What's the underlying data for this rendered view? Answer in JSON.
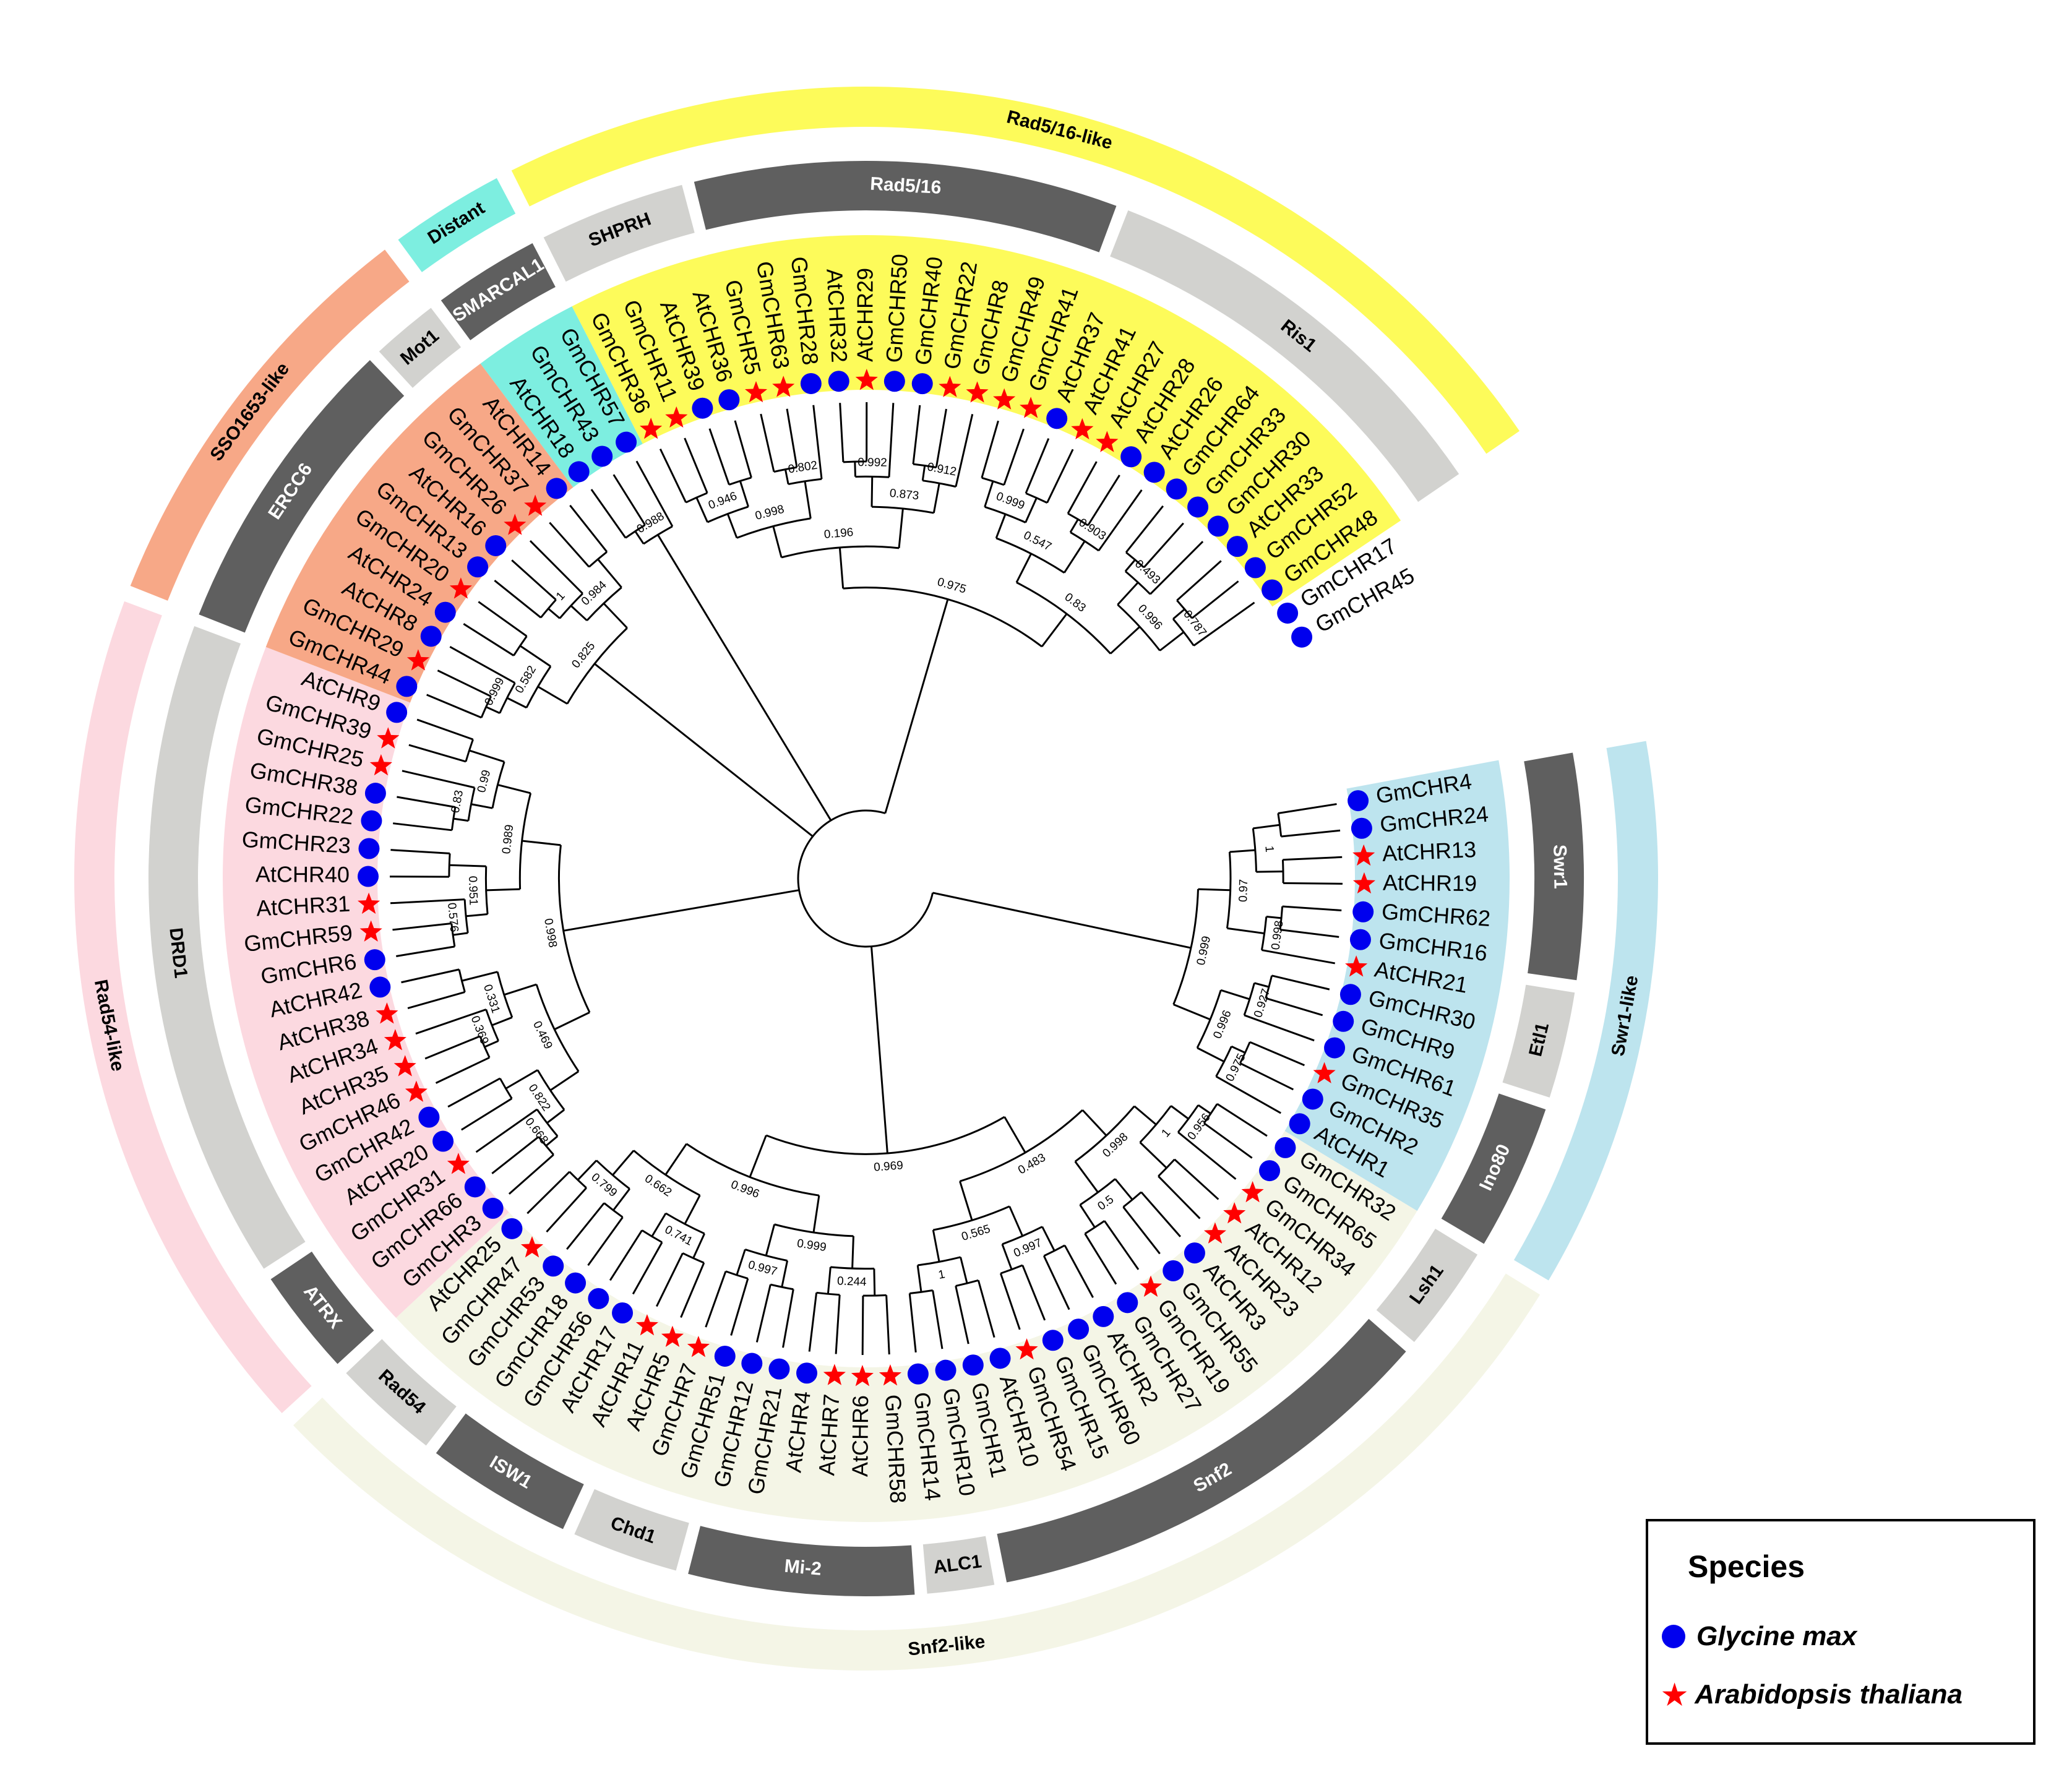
{
  "leaves": [
    {
      "id": "GmCHR4",
      "sp": "gm"
    },
    {
      "id": "GmCHR24",
      "sp": "gm"
    },
    {
      "id": "AtCHR13",
      "sp": "at"
    },
    {
      "id": "AtCHR19",
      "sp": "at"
    },
    {
      "id": "GmCHR62",
      "sp": "gm"
    },
    {
      "id": "GmCHR16",
      "sp": "gm"
    },
    {
      "id": "AtCHR21",
      "sp": "at"
    },
    {
      "id": "GmCHR30",
      "sp": "gm"
    },
    {
      "id": "GmCHR9",
      "sp": "gm"
    },
    {
      "id": "GmCHR61",
      "sp": "gm"
    },
    {
      "id": "GmCHR35",
      "sp": "at"
    },
    {
      "id": "GmCHR2",
      "sp": "gm"
    },
    {
      "id": "AtCHR1",
      "sp": "gm"
    },
    {
      "id": "GmCHR32",
      "sp": "gm"
    },
    {
      "id": "GmCHR65",
      "sp": "gm"
    },
    {
      "id": "GmCHR34",
      "sp": "at"
    },
    {
      "id": "AtCHR12",
      "sp": "at"
    },
    {
      "id": "AtCHR23",
      "sp": "at"
    },
    {
      "id": "AtCHR3",
      "sp": "gm"
    },
    {
      "id": "GmCHR55",
      "sp": "gm"
    },
    {
      "id": "GmCHR19",
      "sp": "at"
    },
    {
      "id": "GmCHR27",
      "sp": "gm"
    },
    {
      "id": "AtCHR2",
      "sp": "gm"
    },
    {
      "id": "GmCHR60",
      "sp": "gm"
    },
    {
      "id": "GmCHR15",
      "sp": "gm"
    },
    {
      "id": "GmCHR54",
      "sp": "at"
    },
    {
      "id": "AtCHR10",
      "sp": "gm"
    },
    {
      "id": "GmCHR1",
      "sp": "gm"
    },
    {
      "id": "GmCHR10",
      "sp": "gm"
    },
    {
      "id": "GmCHR14",
      "sp": "gm"
    },
    {
      "id": "GmCHR58",
      "sp": "at"
    },
    {
      "id": "AtCHR6",
      "sp": "at"
    },
    {
      "id": "AtCHR7",
      "sp": "at"
    },
    {
      "id": "AtCHR4",
      "sp": "gm"
    },
    {
      "id": "GmCHR21",
      "sp": "gm"
    },
    {
      "id": "GmCHR12",
      "sp": "gm"
    },
    {
      "id": "GmCHR51",
      "sp": "gm"
    },
    {
      "id": "GmCHR7",
      "sp": "at"
    },
    {
      "id": "AtCHR5",
      "sp": "at"
    },
    {
      "id": "AtCHR11",
      "sp": "at"
    },
    {
      "id": "AtCHR17",
      "sp": "gm"
    },
    {
      "id": "GmCHR56",
      "sp": "gm"
    },
    {
      "id": "GmCHR18",
      "sp": "gm"
    },
    {
      "id": "GmCHR53",
      "sp": "gm"
    },
    {
      "id": "GmCHR47",
      "sp": "at"
    },
    {
      "id": "AtCHR25",
      "sp": "gm"
    },
    {
      "id": "GmCHR3",
      "sp": "gm"
    },
    {
      "id": "GmCHR66",
      "sp": "gm"
    },
    {
      "id": "GmCHR31",
      "sp": "at"
    },
    {
      "id": "AtCHR20",
      "sp": "gm"
    },
    {
      "id": "GmCHR42",
      "sp": "gm"
    },
    {
      "id": "GmCHR46",
      "sp": "at"
    },
    {
      "id": "AtCHR35",
      "sp": "at"
    },
    {
      "id": "AtCHR34",
      "sp": "at"
    },
    {
      "id": "AtCHR38",
      "sp": "at"
    },
    {
      "id": "AtCHR42",
      "sp": "gm"
    },
    {
      "id": "GmCHR6",
      "sp": "gm"
    },
    {
      "id": "GmCHR59",
      "sp": "at"
    },
    {
      "id": "AtCHR31",
      "sp": "at"
    },
    {
      "id": "AtCHR40",
      "sp": "gm"
    },
    {
      "id": "GmCHR23",
      "sp": "gm"
    },
    {
      "id": "GmCHR22",
      "sp": "gm"
    },
    {
      "id": "GmCHR38",
      "sp": "gm"
    },
    {
      "id": "GmCHR25",
      "sp": "at"
    },
    {
      "id": "GmCHR39",
      "sp": "at"
    },
    {
      "id": "AtCHR9",
      "sp": "gm"
    },
    {
      "id": "GmCHR44",
      "sp": "gm"
    },
    {
      "id": "GmCHR29",
      "sp": "at"
    },
    {
      "id": "AtCHR8",
      "sp": "gm"
    },
    {
      "id": "AtCHR24",
      "sp": "gm"
    },
    {
      "id": "GmCHR20",
      "sp": "at"
    },
    {
      "id": "GmCHR13",
      "sp": "gm"
    },
    {
      "id": "AtCHR16",
      "sp": "gm"
    },
    {
      "id": "GmCHR26",
      "sp": "at"
    },
    {
      "id": "GmCHR37",
      "sp": "at"
    },
    {
      "id": "AtCHR14",
      "sp": "gm"
    },
    {
      "id": "AtCHR18",
      "sp": "gm"
    },
    {
      "id": "GmCHR43",
      "sp": "gm"
    },
    {
      "id": "GmCHR57",
      "sp": "gm"
    },
    {
      "id": "GmCHR36",
      "sp": "at"
    },
    {
      "id": "GmCHR11",
      "sp": "at"
    },
    {
      "id": "AtCHR39",
      "sp": "gm"
    },
    {
      "id": "AtCHR36",
      "sp": "gm"
    },
    {
      "id": "GmCHR5",
      "sp": "at"
    },
    {
      "id": "GmCHR63",
      "sp": "at"
    },
    {
      "id": "GmCHR28",
      "sp": "gm"
    },
    {
      "id": "AtCHR32",
      "sp": "gm"
    },
    {
      "id": "AtCHR29",
      "sp": "at"
    },
    {
      "id": "GmCHR50",
      "sp": "gm"
    },
    {
      "id": "GmCHR40",
      "sp": "gm"
    },
    {
      "id": "GmCHR22",
      "sp": "at"
    },
    {
      "id": "GmCHR8",
      "sp": "at"
    },
    {
      "id": "GmCHR49",
      "sp": "at"
    },
    {
      "id": "GmCHR41",
      "sp": "at"
    },
    {
      "id": "AtCHR37",
      "sp": "gm"
    },
    {
      "id": "AtCHR41",
      "sp": "at"
    },
    {
      "id": "AtCHR27",
      "sp": "at"
    },
    {
      "id": "AtCHR28",
      "sp": "gm"
    },
    {
      "id": "AtCHR26",
      "sp": "gm"
    },
    {
      "id": "GmCHR64",
      "sp": "gm"
    },
    {
      "id": "GmCHR33",
      "sp": "gm"
    },
    {
      "id": "GmCHR30",
      "sp": "gm"
    },
    {
      "id": "AtCHR33",
      "sp": "gm"
    },
    {
      "id": "GmCHR52",
      "sp": "gm"
    },
    {
      "id": "GmCHR48",
      "sp": "gm"
    },
    {
      "id": "GmCHR17",
      "sp": "gm"
    },
    {
      "id": "GmCHR45",
      "sp": "gm"
    }
  ],
  "subfamilies": [
    {
      "name": "Swr1",
      "from": 0,
      "to": 5,
      "shade": "dark"
    },
    {
      "name": "Etl1",
      "from": 6,
      "to": 8,
      "shade": "light"
    },
    {
      "name": "Ino80",
      "from": 9,
      "to": 12,
      "shade": "dark"
    },
    {
      "name": "Lsh1",
      "from": 13,
      "to": 15,
      "shade": "light"
    },
    {
      "name": "Snf2",
      "from": 16,
      "to": 27,
      "shade": "dark"
    },
    {
      "name": "ALC1",
      "from": 28,
      "to": 29,
      "shade": "light"
    },
    {
      "name": "Mi-2",
      "from": 30,
      "to": 35,
      "shade": "dark"
    },
    {
      "name": "Chd1",
      "from": 36,
      "to": 38,
      "shade": "light"
    },
    {
      "name": "ISW1",
      "from": 39,
      "to": 42,
      "shade": "dark"
    },
    {
      "name": "Rad54",
      "from": 43,
      "to": 45,
      "shade": "light"
    },
    {
      "name": "ATRX",
      "from": 46,
      "to": 48,
      "shade": "dark"
    },
    {
      "name": "DRD1",
      "from": 49,
      "to": 65,
      "shade": "light"
    },
    {
      "name": "ERCC6",
      "from": 66,
      "to": 73,
      "shade": "dark"
    },
    {
      "name": "Mot1",
      "from": 74,
      "to": 75,
      "shade": "light"
    },
    {
      "name": "SMARCAL1",
      "from": 76,
      "to": 78,
      "shade": "dark"
    },
    {
      "name": "SHPRH",
      "from": 79,
      "to": 82,
      "shade": "light"
    },
    {
      "name": "Rad5/16",
      "from": 83,
      "to": 93,
      "shade": "dark"
    },
    {
      "name": "Ris1",
      "from": 94,
      "to": 104,
      "shade": "light"
    }
  ],
  "groups": [
    {
      "name": "Swr1-like",
      "from": 0,
      "to": 12,
      "color": "#bde4ee"
    },
    {
      "name": "Snf2-like",
      "from": 13,
      "to": 45,
      "color": "#f4f5e6"
    },
    {
      "name": "Rad54-like",
      "from": 46,
      "to": 65,
      "color": "#fcd9e0"
    },
    {
      "name": "SSO1653-like",
      "from": 66,
      "to": 75,
      "color": "#f7a887"
    },
    {
      "name": "Distant",
      "from": 76,
      "to": 78,
      "color": "#7deee0"
    },
    {
      "name": "Rad5/16-like",
      "from": 79,
      "to": 104,
      "color": "#fdfb5a"
    }
  ],
  "bootstrap": [
    "1",
    "0.998",
    "0.97",
    "0.927",
    "0.975",
    "0.996",
    "0.999",
    "0.956",
    "1",
    "0.5",
    "0.998",
    "0.997",
    "1",
    "0.565",
    "0.483",
    "0.244",
    "0.997",
    "0.999",
    "0.741",
    "0.799",
    "0.662",
    "0.996",
    "0.969",
    "0.668",
    "0.822",
    "0.369",
    "0.331",
    "0.469",
    "0.576",
    "0.951",
    "0.83",
    "0.99",
    "0.989",
    "0.998",
    "0.999",
    "0.582",
    "1",
    "0.984",
    "0.825",
    "0.988",
    "0.946",
    "0.802",
    "0.998",
    "0.992",
    "0.912",
    "0.873",
    "0.196",
    "0.999",
    "0.903",
    "0.547",
    "0.493",
    "0.787",
    "0.996",
    "0.83",
    "0.975",
    "0.877",
    "1"
  ],
  "legend": {
    "title": "Species",
    "gm_label": "Glycine max",
    "at_label": "Arabidopsis thaliana",
    "gm_color": "#0000ee",
    "at_color": "#ff0000"
  },
  "colors": {
    "dark": "#5f5f5f",
    "light": "#d2d2cf",
    "branch": "#000000"
  }
}
